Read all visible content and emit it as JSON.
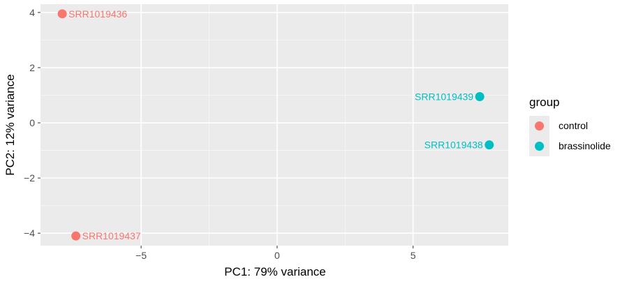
{
  "chart_data": {
    "type": "scatter",
    "xlabel": "PC1: 79% variance",
    "ylabel": "PC2: 12% variance",
    "xlim": [
      -8.7,
      8.5
    ],
    "ylim": [
      -4.45,
      4.3
    ],
    "x_ticks": [
      {
        "value": -5,
        "label": "−5"
      },
      {
        "value": 0,
        "label": "0"
      },
      {
        "value": 5,
        "label": "5"
      }
    ],
    "y_ticks": [
      {
        "value": -4,
        "label": "−4"
      },
      {
        "value": -2,
        "label": "−2"
      },
      {
        "value": 0,
        "label": "0"
      },
      {
        "value": 2,
        "label": "2"
      },
      {
        "value": 4,
        "label": "4"
      }
    ],
    "grid": true,
    "legend": {
      "title": "group",
      "placement": "right",
      "items": [
        {
          "label": "control",
          "color": "#F8766D"
        },
        {
          "label": "brassinolide",
          "color": "#00BFC4"
        }
      ]
    },
    "points": [
      {
        "label": "SRR1019436",
        "group": "control",
        "x": -7.9,
        "y": 3.95,
        "label_side": "right"
      },
      {
        "label": "SRR1019437",
        "group": "control",
        "x": -7.4,
        "y": -4.1,
        "label_side": "right"
      },
      {
        "label": "SRR1019439",
        "group": "brassinolide",
        "x": 7.45,
        "y": 0.95,
        "label_side": "left"
      },
      {
        "label": "SRR1019438",
        "group": "brassinolide",
        "x": 7.8,
        "y": -0.8,
        "label_side": "left"
      }
    ]
  }
}
